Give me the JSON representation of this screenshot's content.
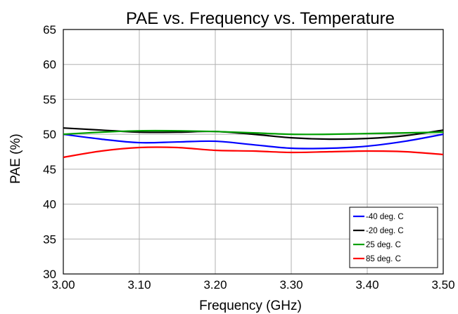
{
  "chart_data": {
    "type": "line",
    "title": "PAE vs. Frequency vs. Temperature",
    "xlabel": "Frequency (GHz)",
    "ylabel": "PAE (%)",
    "xlim": [
      3.0,
      3.5
    ],
    "ylim": [
      30,
      65
    ],
    "xticks": [
      "3.00",
      "3.10",
      "3.20",
      "3.30",
      "3.40",
      "3.50"
    ],
    "yticks": [
      "30",
      "35",
      "40",
      "45",
      "50",
      "55",
      "60",
      "65"
    ],
    "grid": true,
    "legend_position": "bottom-right",
    "series": [
      {
        "name": "-40 deg. C",
        "color": "#0000ff",
        "x": [
          3.0,
          3.05,
          3.1,
          3.15,
          3.2,
          3.25,
          3.3,
          3.35,
          3.4,
          3.45,
          3.5
        ],
        "values": [
          50.0,
          49.3,
          48.8,
          48.9,
          49.0,
          48.5,
          48.0,
          48.0,
          48.3,
          49.0,
          50.0
        ]
      },
      {
        "name": "-20 deg. C",
        "color": "#000000",
        "x": [
          3.0,
          3.05,
          3.1,
          3.15,
          3.2,
          3.25,
          3.3,
          3.35,
          3.4,
          3.45,
          3.5
        ],
        "values": [
          50.9,
          50.6,
          50.3,
          50.3,
          50.4,
          50.0,
          49.5,
          49.3,
          49.4,
          49.8,
          50.6
        ]
      },
      {
        "name": "25 deg. C",
        "color": "#00a000",
        "x": [
          3.0,
          3.05,
          3.1,
          3.15,
          3.2,
          3.25,
          3.3,
          3.35,
          3.4,
          3.45,
          3.5
        ],
        "values": [
          50.0,
          50.3,
          50.5,
          50.5,
          50.4,
          50.2,
          50.0,
          50.0,
          50.1,
          50.2,
          50.3
        ]
      },
      {
        "name": "85 deg. C",
        "color": "#ff0000",
        "x": [
          3.0,
          3.05,
          3.1,
          3.15,
          3.2,
          3.25,
          3.3,
          3.35,
          3.4,
          3.45,
          3.5
        ],
        "values": [
          46.7,
          47.6,
          48.1,
          48.1,
          47.7,
          47.6,
          47.4,
          47.5,
          47.6,
          47.5,
          47.1
        ]
      }
    ]
  }
}
